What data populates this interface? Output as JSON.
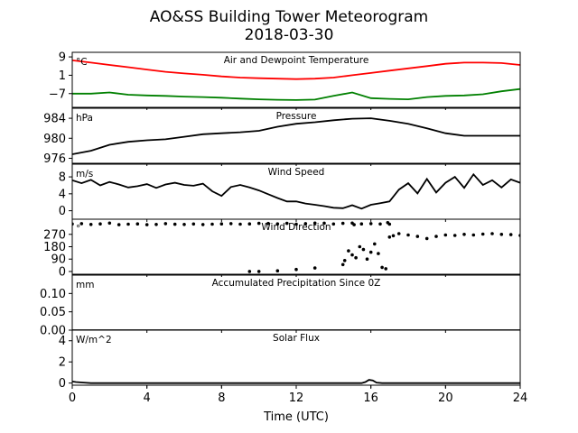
{
  "title": "AO&SS Building Tower Meteorogram",
  "subtitle": "2018-03-30",
  "xlabel": "Time (UTC)",
  "chart_data": {
    "type": "line",
    "x_range": [
      0,
      24
    ],
    "x_ticks": [
      0,
      4,
      8,
      12,
      16,
      20,
      24
    ],
    "x_tick_labels": [
      "0",
      "4",
      "8",
      "12",
      "16",
      "20",
      "24"
    ],
    "panels": [
      {
        "label": "Air and Dewpoint Temperature",
        "unit": "°C",
        "ylim": [
          -13,
          11
        ],
        "y_ticks": [
          9,
          1,
          -7
        ],
        "y_tick_labels": [
          "9",
          "1",
          "−7"
        ],
        "series": [
          {
            "name": "",
            "color": "#ff0000",
            "style": "line",
            "x": [
              0,
              1,
              2,
              3,
              4,
              5,
              6,
              7,
              8,
              9,
              10,
              11,
              12,
              13,
              14,
              15,
              16,
              17,
              18,
              19,
              20,
              21,
              22,
              23,
              24
            ],
            "y": [
              7.5,
              6.5,
              5.5,
              4.5,
              3.5,
              2.5,
              1.8,
              1.2,
              0.5,
              0,
              -0.3,
              -0.5,
              -0.7,
              -0.5,
              0,
              1,
              2,
              3,
              4,
              5,
              6,
              6.5,
              6.5,
              6.3,
              5.5
            ]
          },
          {
            "name": "",
            "color": "#008000",
            "style": "line",
            "x": [
              0,
              1,
              2,
              3,
              4,
              5,
              6,
              7,
              8,
              9,
              10,
              11,
              12,
              13,
              14,
              15,
              16,
              17,
              18,
              19,
              20,
              21,
              22,
              23,
              24
            ],
            "y": [
              -7,
              -7,
              -6.5,
              -7.5,
              -7.8,
              -8,
              -8.3,
              -8.5,
              -8.8,
              -9.2,
              -9.5,
              -9.7,
              -9.8,
              -9.6,
              -8,
              -6.5,
              -9,
              -9.3,
              -9.5,
              -8.5,
              -8,
              -7.8,
              -7.3,
              -6,
              -5
            ]
          }
        ]
      },
      {
        "label": "Pressure",
        "unit": "hPa",
        "ylim": [
          975,
          986
        ],
        "y_ticks": [
          984,
          980,
          976
        ],
        "y_tick_labels": [
          "984",
          "980",
          "976"
        ],
        "series": [
          {
            "name": "",
            "color": "#000000",
            "style": "line",
            "x": [
              0,
              1,
              2,
              3,
              4,
              5,
              6,
              7,
              8,
              9,
              10,
              11,
              12,
              13,
              14,
              15,
              16,
              17,
              18,
              19,
              20,
              21,
              22,
              23,
              24
            ],
            "y": [
              976.8,
              977.5,
              978.7,
              979.3,
              979.6,
              979.8,
              980.3,
              980.8,
              981.0,
              981.2,
              981.5,
              982.3,
              982.9,
              983.2,
              983.6,
              983.9,
              984.0,
              983.5,
              982.9,
              982.0,
              981.0,
              980.5,
              980.5,
              980.5,
              980.5
            ]
          }
        ]
      },
      {
        "label": "Wind Speed",
        "unit": "m/s",
        "ylim": [
          -2,
          11
        ],
        "y_ticks": [
          8,
          4,
          0
        ],
        "y_tick_labels": [
          "8",
          "4",
          "0"
        ],
        "series": [
          {
            "name": "",
            "color": "#000000",
            "style": "line",
            "x": [
              0,
              0.5,
              1,
              1.5,
              2,
              2.5,
              3,
              3.5,
              4,
              4.5,
              5,
              5.5,
              6,
              6.5,
              7,
              7.5,
              8,
              8.5,
              9,
              9.5,
              10,
              10.5,
              11,
              11.5,
              12,
              12.5,
              13,
              13.5,
              14,
              14.5,
              15,
              15.5,
              16,
              16.5,
              17,
              17.5,
              18,
              18.5,
              19,
              19.5,
              20,
              20.5,
              21,
              21.5,
              22,
              22.5,
              23,
              23.5,
              24
            ],
            "y": [
              7.2,
              6.5,
              7.3,
              6.0,
              6.8,
              6.2,
              5.5,
              5.8,
              6.3,
              5.4,
              6.2,
              6.6,
              6.1,
              5.9,
              6.4,
              4.6,
              3.5,
              5.6,
              6.1,
              5.5,
              4.8,
              3.9,
              3.0,
              2.2,
              2.2,
              1.7,
              1.4,
              1.1,
              0.7,
              0.6,
              1.3,
              0.5,
              1.4,
              1.8,
              2.2,
              5.0,
              6.5,
              4.1,
              7.5,
              4.3,
              6.6,
              8.0,
              5.4,
              8.6,
              6.1,
              7.2,
              5.5,
              7.4,
              6.6
            ]
          }
        ]
      },
      {
        "label": "Wind Direction",
        "unit": "°",
        "ylim": [
          -20,
          380
        ],
        "y_ticks": [
          270,
          180,
          90,
          0
        ],
        "y_tick_labels": [
          "270",
          "180",
          "90",
          "0"
        ],
        "series": [
          {
            "name": "",
            "color": "#000000",
            "style": "points",
            "x": [
              0,
              0.5,
              1,
              1.5,
              2,
              2.5,
              3,
              3.5,
              4,
              4.5,
              5,
              5.5,
              6,
              6.5,
              7,
              7.5,
              8,
              8.5,
              9,
              9.5,
              10,
              10.5,
              11,
              11.5,
              12,
              12.5,
              13,
              13.5,
              14,
              14.5,
              15,
              15.5,
              16,
              16.5,
              17,
              17.5,
              18,
              18.5,
              19,
              19.5,
              20,
              20.5,
              21,
              21.5,
              22,
              22.5,
              23,
              23.5,
              24,
              9.5,
              10,
              11,
              12,
              13,
              14.5,
              14.6,
              14.8,
              15.0,
              15.2,
              15.4,
              15.6,
              15.8,
              16.0,
              16.2,
              16.4,
              16.6,
              16.8,
              17.0,
              17.2,
              15.1,
              16.9
            ],
            "y": [
              345,
              348,
              342,
              346,
              352,
              340,
              344,
              346,
              340,
              342,
              348,
              343,
              342,
              345,
              341,
              344,
              346,
              348,
              344,
              346,
              350,
              349,
              346,
              350,
              344,
              348,
              352,
              351,
              345,
              350,
              352,
              346,
              348,
              345,
              344,
              275,
              265,
              255,
              240,
              255,
              265,
              262,
              270,
              265,
              272,
              275,
              270,
              268,
              262,
              0,
              0,
              5,
              15,
              25,
              50,
              80,
              150,
              120,
              100,
              180,
              160,
              90,
              140,
              200,
              130,
              30,
              20,
              250,
              260,
              340,
              355
            ]
          }
        ]
      },
      {
        "label": "Accumulated Precipitation Since 0Z",
        "unit": "mm",
        "ylim": [
          0,
          0.15
        ],
        "y_ticks": [
          0.1,
          0.05,
          0.0
        ],
        "y_tick_labels": [
          "0.10",
          "0.05",
          "0.00"
        ],
        "series": [
          {
            "name": "",
            "color": "#000000",
            "style": "line",
            "x": [
              0,
              24
            ],
            "y": [
              0,
              0
            ]
          }
        ]
      },
      {
        "label": "Solar Flux",
        "unit": "W/m^2",
        "ylim": [
          -0.2,
          5
        ],
        "y_ticks": [
          4,
          2,
          0
        ],
        "y_tick_labels": [
          "4",
          "2",
          "0"
        ],
        "series": [
          {
            "name": "",
            "color": "#000000",
            "style": "line",
            "x": [
              0,
              0.2,
              0.6,
              1,
              2,
              4,
              8,
              12,
              15,
              15.5,
              15.7,
              15.9,
              16.1,
              16.3,
              16.6,
              17,
              20,
              24
            ],
            "y": [
              0.15,
              0.1,
              0.05,
              0,
              0,
              0,
              0,
              0,
              0,
              0,
              0.1,
              0.3,
              0.25,
              0.05,
              0,
              0,
              0,
              0
            ]
          }
        ]
      }
    ]
  }
}
